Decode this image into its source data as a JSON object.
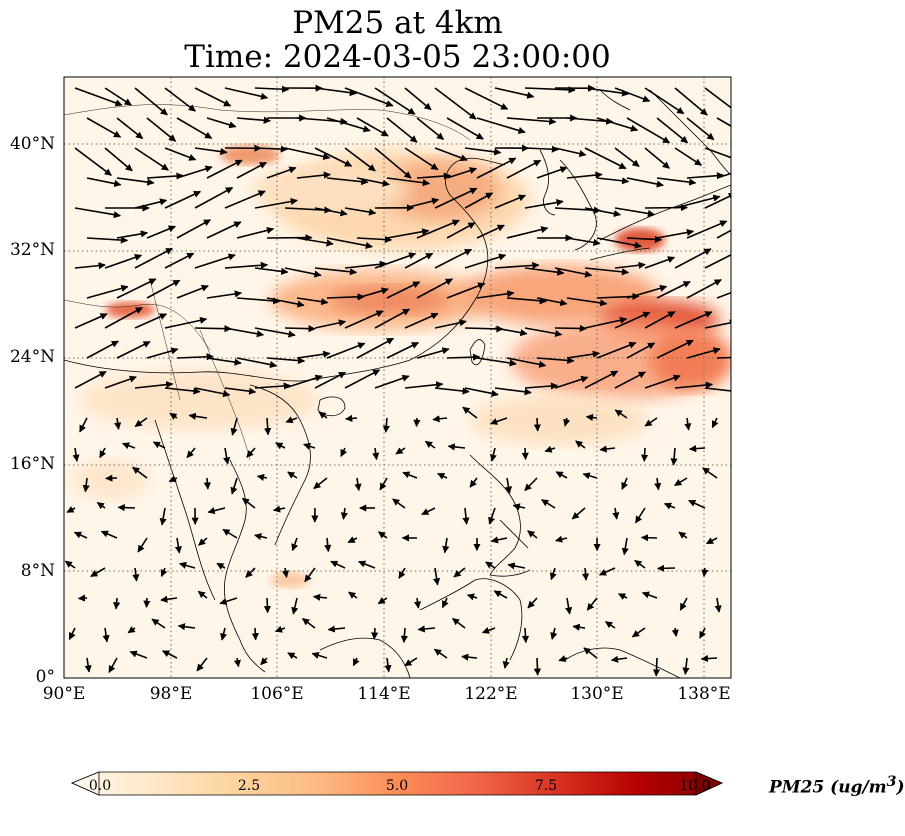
{
  "title": {
    "line1": "PM25 at 4km",
    "line2": "Time: 2024-03-05 23:00:00"
  },
  "map": {
    "projection": "PlateCarree",
    "lon_range": [
      90,
      140
    ],
    "lat_range": [
      0,
      44
    ],
    "lon_ticks": [
      "90°E",
      "98°E",
      "106°E",
      "114°E",
      "122°E",
      "130°E",
      "138°E"
    ],
    "lat_ticks": [
      "0°",
      "8°N",
      "16°N",
      "24°N",
      "32°N",
      "40°N"
    ],
    "gridlines": "dotted",
    "variable": "PM25",
    "overlay": "wind vectors (arrows)"
  },
  "colorbar": {
    "label": "PM25 (ug/m$^3$)",
    "label_display": "PM25 (ug/m",
    "label_sup": "3",
    "label_close": ")",
    "ticks": [
      "0.0",
      "2.5",
      "5.0",
      "7.5",
      "10.0"
    ],
    "min": 0,
    "max": 10,
    "extend": "both",
    "cmap": "OrRd",
    "colors": [
      "#fff7ec",
      "#fee8c8",
      "#fdd49e",
      "#fdbb84",
      "#fc8d59",
      "#ef6548",
      "#d7301f",
      "#b30000",
      "#7f0000"
    ]
  }
}
